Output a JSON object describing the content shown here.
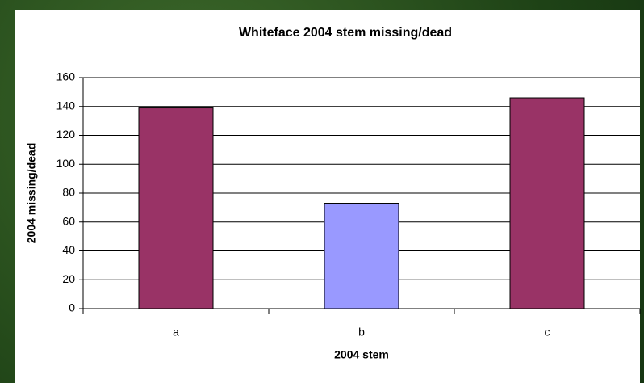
{
  "chart_data": {
    "type": "bar",
    "title": "Whiteface 2004 stem missing/dead",
    "x_label": "2004 stem",
    "y_label": "2004 missing/dead",
    "categories": [
      "a",
      "b",
      "c"
    ],
    "values": [
      139,
      73,
      146
    ],
    "colors": [
      "#993366",
      "#9999ff",
      "#993366"
    ],
    "ylim": [
      0,
      160
    ],
    "yticks": [
      0,
      20,
      40,
      60,
      80,
      100,
      120,
      140,
      160
    ],
    "grid": true
  }
}
